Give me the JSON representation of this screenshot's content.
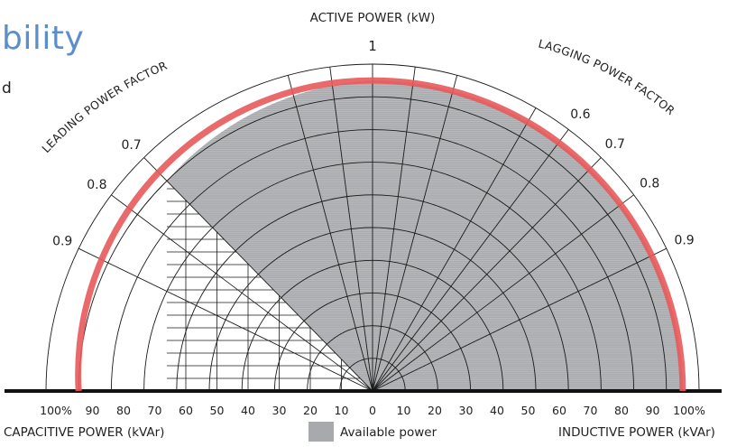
{
  "heading": {
    "title_fragment": "bility",
    "subtitle_fragment": "d"
  },
  "axis_titles": {
    "top": "ACTIVE POWER (kW)",
    "bottom_left": "CAPACITIVE POWER (kVAr)",
    "bottom_right": "INDUCTIVE POWER (kVAr)"
  },
  "arc_labels": {
    "leading": "LEADING POWER FACTOR",
    "lagging": "LAGGING POWER FACTOR"
  },
  "legend": {
    "available_power": "Available power"
  },
  "colors": {
    "fill": "#a7a9ac",
    "grid": "#1a1a1a",
    "limit": "#e8595a",
    "title_blue": "#5b8fc9"
  },
  "chart_data": {
    "type": "polar-capability",
    "active_power_top_label": "1",
    "x_ticks_left": [
      "100%",
      "90",
      "80",
      "70",
      "60",
      "50",
      "40",
      "30",
      "20",
      "10"
    ],
    "x_tick_center": "0",
    "x_ticks_right": [
      "10",
      "20",
      "30",
      "40",
      "50",
      "60",
      "70",
      "80",
      "90",
      "100%"
    ],
    "leading_pf_labels": [
      "0.9",
      "0.8",
      "0.7"
    ],
    "leading_pf_values": [
      0.9,
      0.8,
      0.7
    ],
    "lagging_pf_labels": [
      "0.9",
      "0.8",
      "0.7",
      "0.6"
    ],
    "lagging_pf_values": [
      0.9,
      0.8,
      0.7,
      0.6
    ],
    "radial_pf_values_left": [
      0.7,
      0.8,
      0.9
    ],
    "radial_pf_values_right": [
      0.5,
      0.6,
      0.7,
      0.8,
      0.9
    ],
    "extra_radial_angles_deg": [
      75,
      82.5,
      97.5,
      105
    ],
    "concentric_rings_percent": [
      10,
      20,
      30,
      40,
      50,
      60,
      70,
      80,
      90,
      100
    ],
    "available_region": {
      "lagging_limit_percent": 95,
      "leading_limit_percent": 90,
      "leading_min_power_factor": 0.7
    }
  }
}
